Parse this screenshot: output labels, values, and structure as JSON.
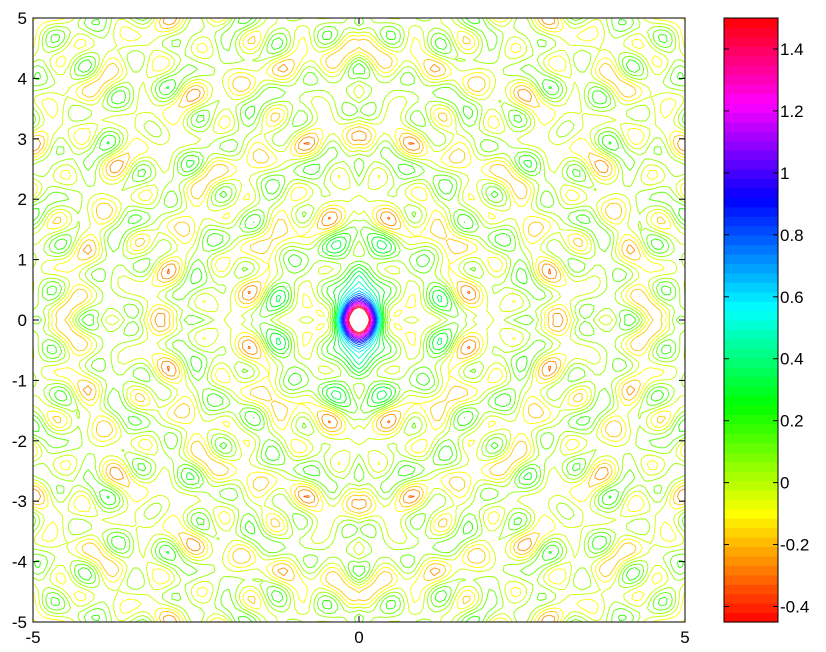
{
  "chart_data": {
    "type": "contour",
    "title": "",
    "xlabel": "",
    "ylabel": "",
    "xlim": [
      -5,
      5
    ],
    "ylim": [
      -5,
      5
    ],
    "x_ticks": [
      "-5",
      "0",
      "5"
    ],
    "y_ticks": [
      "-5",
      "-4",
      "-3",
      "-2",
      "-1",
      "0",
      "1",
      "2",
      "3",
      "4",
      "5"
    ],
    "colorbar": {
      "range": [
        -0.45,
        1.5
      ],
      "ticks": [
        {
          "value": -0.4,
          "label": "-0.4"
        },
        {
          "value": -0.2,
          "label": "-0.2"
        },
        {
          "value": 0,
          "label": "0"
        },
        {
          "value": 0.2,
          "label": "0.2"
        },
        {
          "value": 0.4,
          "label": "0.4"
        },
        {
          "value": 0.6,
          "label": "0.6"
        },
        {
          "value": 0.8,
          "label": "0.8"
        },
        {
          "value": 1,
          "label": "1"
        },
        {
          "value": 1.2,
          "label": "1.2"
        },
        {
          "value": 1.4,
          "label": "1.4"
        }
      ],
      "colormap": [
        "#ff0000",
        "#ffff00",
        "#00ff00",
        "#00ffff",
        "#0000ff",
        "#ff00ff",
        "#ff0000"
      ]
    },
    "filled": false,
    "grid": false,
    "symmetry": "mirror in x and y",
    "peak_value_at_origin": 1.5
  }
}
